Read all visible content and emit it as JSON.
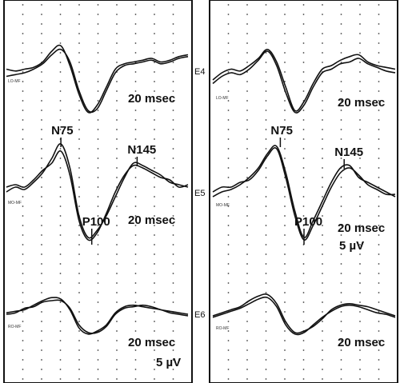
{
  "chart_data": {
    "type": "line",
    "description_units": "normalized time (0-1) vs amplitude (relative, positive = up)",
    "panels": [
      {
        "side": "left",
        "rows": [
          {
            "row": "E4",
            "lead_label": "LO-MF",
            "time_label": "20 msec",
            "scale_label": "",
            "series": [
              {
                "name": "trace-a",
                "x": [
                  0,
                  0.05,
                  0.1,
                  0.15,
                  0.2,
                  0.25,
                  0.3,
                  0.35,
                  0.4,
                  0.45,
                  0.5,
                  0.55,
                  0.6,
                  0.65,
                  0.7,
                  0.75,
                  0.8,
                  0.85,
                  0.9,
                  0.95,
                  1.0
                ],
                "y": [
                  0.3,
                  0.25,
                  0.3,
                  0.35,
                  0.5,
                  0.8,
                  0.95,
                  0.4,
                  -0.4,
                  -0.9,
                  -0.7,
                  -0.2,
                  0.3,
                  0.45,
                  0.5,
                  0.55,
                  0.6,
                  0.5,
                  0.55,
                  0.65,
                  0.7
                ]
              },
              {
                "name": "trace-b",
                "x": [
                  0,
                  0.05,
                  0.1,
                  0.15,
                  0.2,
                  0.25,
                  0.3,
                  0.35,
                  0.4,
                  0.45,
                  0.5,
                  0.55,
                  0.6,
                  0.65,
                  0.7,
                  0.75,
                  0.8,
                  0.85,
                  0.9,
                  0.95,
                  1.0
                ],
                "y": [
                  0.1,
                  0.15,
                  0.2,
                  0.3,
                  0.45,
                  0.7,
                  0.85,
                  0.5,
                  -0.3,
                  -0.85,
                  -0.8,
                  -0.3,
                  0.2,
                  0.4,
                  0.45,
                  0.5,
                  0.55,
                  0.45,
                  0.5,
                  0.6,
                  0.65
                ]
              }
            ]
          },
          {
            "row": "E5",
            "lead_label": "MO-MF",
            "time_label": "20 msec",
            "scale_label": "",
            "peaks": [
              {
                "name": "N75",
                "x": 0.3,
                "y": 1.0
              },
              {
                "name": "P100",
                "x": 0.47,
                "y": -1.0
              },
              {
                "name": "N145",
                "x": 0.72,
                "y": 0.6
              }
            ],
            "series": [
              {
                "name": "trace-a",
                "x": [
                  0,
                  0.05,
                  0.1,
                  0.15,
                  0.2,
                  0.25,
                  0.3,
                  0.35,
                  0.4,
                  0.45,
                  0.5,
                  0.55,
                  0.6,
                  0.65,
                  0.7,
                  0.75,
                  0.8,
                  0.85,
                  0.9,
                  0.95,
                  1.0
                ],
                "y": [
                  0.0,
                  0.1,
                  0.05,
                  0.2,
                  0.4,
                  0.7,
                  1.0,
                  0.5,
                  -0.5,
                  -0.95,
                  -0.8,
                  -0.5,
                  -0.1,
                  0.3,
                  0.6,
                  0.55,
                  0.45,
                  0.35,
                  0.2,
                  0.15,
                  0.1
                ]
              },
              {
                "name": "trace-b",
                "x": [
                  0,
                  0.05,
                  0.1,
                  0.15,
                  0.2,
                  0.25,
                  0.3,
                  0.35,
                  0.4,
                  0.45,
                  0.5,
                  0.55,
                  0.6,
                  0.65,
                  0.7,
                  0.75,
                  0.8,
                  0.85,
                  0.9,
                  0.95,
                  1.0
                ],
                "y": [
                  0.1,
                  0.15,
                  0.1,
                  0.25,
                  0.45,
                  0.6,
                  0.85,
                  0.35,
                  -0.6,
                  -1.0,
                  -0.85,
                  -0.45,
                  0.0,
                  0.35,
                  0.55,
                  0.5,
                  0.4,
                  0.3,
                  0.25,
                  0.1,
                  0.15
                ]
              }
            ]
          },
          {
            "row": "E6",
            "lead_label": "RO-MF",
            "time_label": "20 msec",
            "scale_label": "5 µV",
            "series": [
              {
                "name": "trace-a",
                "x": [
                  0,
                  0.05,
                  0.1,
                  0.15,
                  0.2,
                  0.25,
                  0.3,
                  0.35,
                  0.4,
                  0.45,
                  0.5,
                  0.55,
                  0.6,
                  0.65,
                  0.7,
                  0.75,
                  0.8,
                  0.85,
                  0.9,
                  0.95,
                  1.0
                ],
                "y": [
                  0.1,
                  0.15,
                  0.2,
                  0.35,
                  0.5,
                  0.6,
                  0.55,
                  0.2,
                  -0.4,
                  -0.6,
                  -0.5,
                  -0.3,
                  0.1,
                  0.3,
                  0.35,
                  0.3,
                  0.25,
                  0.2,
                  0.1,
                  0.05,
                  0.0
                ]
              },
              {
                "name": "trace-b",
                "x": [
                  0,
                  0.05,
                  0.1,
                  0.15,
                  0.2,
                  0.25,
                  0.3,
                  0.35,
                  0.4,
                  0.45,
                  0.5,
                  0.55,
                  0.6,
                  0.65,
                  0.7,
                  0.75,
                  0.8,
                  0.85,
                  0.9,
                  0.95,
                  1.0
                ],
                "y": [
                  0.05,
                  0.1,
                  0.25,
                  0.3,
                  0.45,
                  0.5,
                  0.5,
                  0.25,
                  -0.3,
                  -0.55,
                  -0.55,
                  -0.35,
                  0.05,
                  0.25,
                  0.3,
                  0.35,
                  0.3,
                  0.2,
                  0.15,
                  0.1,
                  0.05
                ]
              }
            ]
          }
        ]
      },
      {
        "side": "right",
        "rows": [
          {
            "row": "E4",
            "lead_label": "LO-MF",
            "time_label": "20 msec",
            "scale_label": "",
            "series": [
              {
                "name": "trace-a",
                "x": [
                  0,
                  0.05,
                  0.1,
                  0.15,
                  0.2,
                  0.25,
                  0.3,
                  0.35,
                  0.4,
                  0.45,
                  0.5,
                  0.55,
                  0.6,
                  0.65,
                  0.7,
                  0.75,
                  0.8,
                  0.85,
                  0.9,
                  0.95,
                  1.0
                ],
                "y": [
                  0.0,
                  0.2,
                  0.3,
                  0.25,
                  0.4,
                  0.6,
                  0.85,
                  0.5,
                  -0.2,
                  -0.85,
                  -0.6,
                  -0.1,
                  0.3,
                  0.4,
                  0.55,
                  0.65,
                  0.7,
                  0.5,
                  0.4,
                  0.35,
                  0.3
                ]
              },
              {
                "name": "trace-b",
                "x": [
                  0,
                  0.05,
                  0.1,
                  0.15,
                  0.2,
                  0.25,
                  0.3,
                  0.35,
                  0.4,
                  0.45,
                  0.5,
                  0.55,
                  0.6,
                  0.65,
                  0.7,
                  0.75,
                  0.8,
                  0.85,
                  0.9,
                  0.95,
                  1.0
                ],
                "y": [
                  -0.1,
                  0.1,
                  0.2,
                  0.15,
                  0.3,
                  0.55,
                  0.8,
                  0.4,
                  -0.35,
                  -0.9,
                  -0.7,
                  -0.2,
                  0.2,
                  0.3,
                  0.45,
                  0.5,
                  0.6,
                  0.45,
                  0.35,
                  0.25,
                  0.2
                ]
              }
            ]
          },
          {
            "row": "E5",
            "lead_label": "MO-MF",
            "time_label": "20 msec",
            "scale_label": "5 µV",
            "peaks": [
              {
                "name": "N75",
                "x": 0.37,
                "y": 1.0
              },
              {
                "name": "P100",
                "x": 0.5,
                "y": -1.0
              },
              {
                "name": "N145",
                "x": 0.72,
                "y": 0.55
              }
            ],
            "series": [
              {
                "name": "trace-a",
                "x": [
                  0,
                  0.05,
                  0.1,
                  0.15,
                  0.2,
                  0.25,
                  0.3,
                  0.35,
                  0.4,
                  0.45,
                  0.5,
                  0.55,
                  0.6,
                  0.65,
                  0.7,
                  0.75,
                  0.8,
                  0.85,
                  0.9,
                  0.95,
                  1.0
                ],
                "y": [
                  -0.1,
                  0.0,
                  0.05,
                  0.15,
                  0.3,
                  0.5,
                  0.8,
                  0.95,
                  0.4,
                  -0.4,
                  -0.95,
                  -0.6,
                  -0.2,
                  0.2,
                  0.5,
                  0.55,
                  0.3,
                  0.2,
                  0.1,
                  0.0,
                  -0.1
                ]
              },
              {
                "name": "trace-b",
                "x": [
                  0,
                  0.05,
                  0.1,
                  0.15,
                  0.2,
                  0.25,
                  0.3,
                  0.35,
                  0.4,
                  0.45,
                  0.5,
                  0.55,
                  0.6,
                  0.65,
                  0.7,
                  0.75,
                  0.8,
                  0.85,
                  0.9,
                  0.95,
                  1.0
                ],
                "y": [
                  0.0,
                  0.1,
                  0.1,
                  0.2,
                  0.25,
                  0.45,
                  0.75,
                  0.9,
                  0.3,
                  -0.5,
                  -1.0,
                  -0.7,
                  -0.3,
                  0.1,
                  0.4,
                  0.5,
                  0.35,
                  0.15,
                  0.05,
                  -0.05,
                  -0.05
                ]
              }
            ]
          },
          {
            "row": "E6",
            "lead_label": "RO-MF",
            "time_label": "20 msec",
            "scale_label": "",
            "series": [
              {
                "name": "trace-a",
                "x": [
                  0,
                  0.05,
                  0.1,
                  0.15,
                  0.2,
                  0.25,
                  0.3,
                  0.35,
                  0.4,
                  0.45,
                  0.5,
                  0.55,
                  0.6,
                  0.65,
                  0.7,
                  0.75,
                  0.8,
                  0.85,
                  0.9,
                  0.95,
                  1.0
                ],
                "y": [
                  0.0,
                  0.1,
                  0.2,
                  0.3,
                  0.5,
                  0.65,
                  0.7,
                  0.4,
                  -0.2,
                  -0.55,
                  -0.5,
                  -0.35,
                  -0.1,
                  0.2,
                  0.35,
                  0.4,
                  0.35,
                  0.3,
                  0.2,
                  0.1,
                  0.0
                ]
              },
              {
                "name": "trace-b",
                "x": [
                  0,
                  0.05,
                  0.1,
                  0.15,
                  0.2,
                  0.25,
                  0.3,
                  0.35,
                  0.4,
                  0.45,
                  0.5,
                  0.55,
                  0.6,
                  0.65,
                  0.7,
                  0.75,
                  0.8,
                  0.85,
                  0.9,
                  0.95,
                  1.0
                ],
                "y": [
                  -0.05,
                  0.05,
                  0.15,
                  0.25,
                  0.4,
                  0.55,
                  0.6,
                  0.3,
                  -0.3,
                  -0.6,
                  -0.55,
                  -0.3,
                  -0.05,
                  0.15,
                  0.3,
                  0.35,
                  0.3,
                  0.2,
                  0.1,
                  0.05,
                  -0.05
                ]
              }
            ]
          }
        ]
      }
    ]
  }
}
